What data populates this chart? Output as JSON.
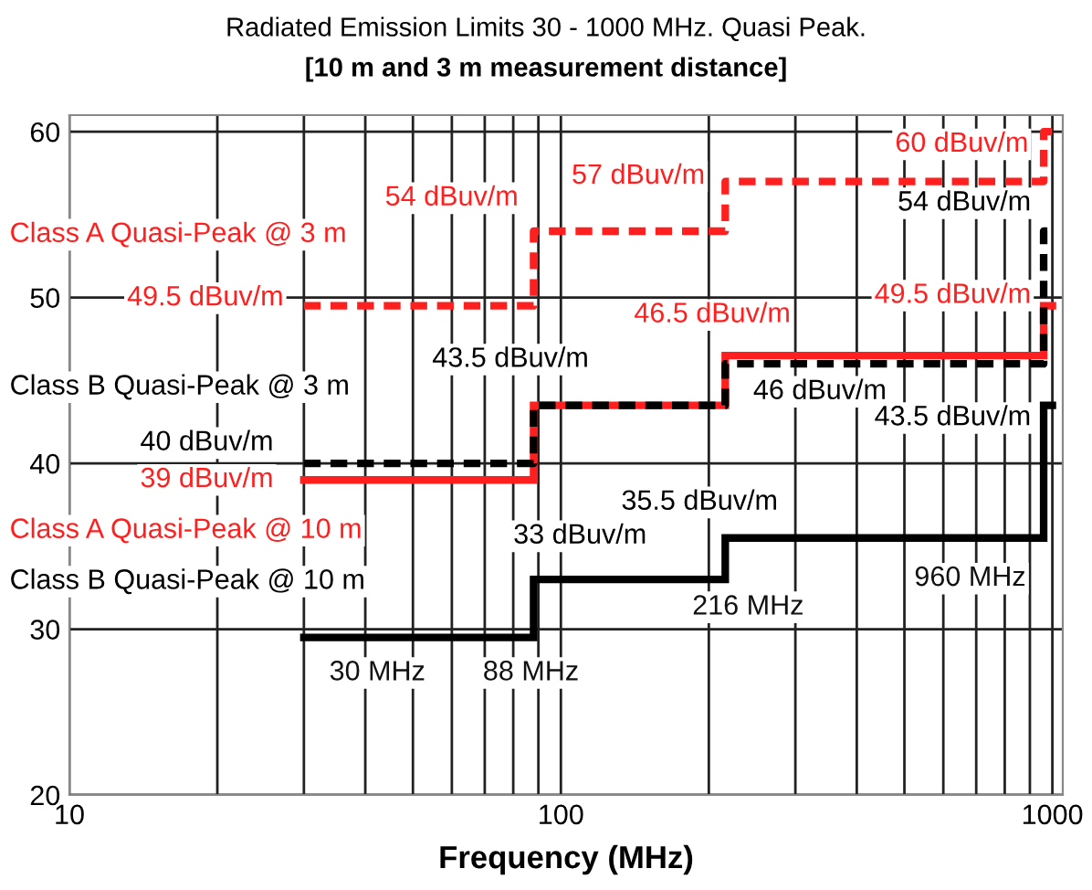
{
  "chart_data": {
    "type": "step",
    "title": "Radiated Emission Limits 30 - 1000 MHz. Quasi Peak.",
    "subtitle": "[10 m and 3 m measurement distance]",
    "xlabel": "Frequency (MHz)",
    "x": [
      30,
      88,
      216,
      960,
      1000
    ],
    "series": [
      {
        "name": "Class A Quasi-Peak @ 3 m",
        "color": "#ff1f1f",
        "line_style": "dashed",
        "values": [
          49.5,
          54,
          57,
          60,
          60
        ],
        "value_labels": [
          "49.5 dBuv/m",
          "54 dBuv/m",
          "57 dBuv/m",
          "60 dBuv/m",
          null
        ]
      },
      {
        "name": "Class B Quasi-Peak @ 3 m",
        "color": "#000000",
        "line_style": "dashed",
        "values": [
          40,
          43.5,
          46,
          54,
          54
        ],
        "value_labels": [
          "40 dBuv/m",
          "43.5 dBuv/m",
          "46 dBuv/m",
          "54 dBuv/m",
          null
        ]
      },
      {
        "name": "Class A Quasi-Peak @ 10 m",
        "color": "#ff1f1f",
        "line_style": "solid",
        "values": [
          39,
          43.5,
          46.5,
          49.5,
          49.5
        ],
        "value_labels": [
          "39 dBuv/m",
          null,
          "46.5 dBuv/m",
          "49.5 dBuv/m",
          null
        ]
      },
      {
        "name": "Class B Quasi-Peak @ 10 m",
        "color": "#000000",
        "line_style": "solid",
        "values": [
          29.5,
          33,
          35.5,
          43.5,
          43.5
        ],
        "value_labels": [
          null,
          "33 dBuv/m",
          "35.5 dBuv/m",
          "43.5 dBuv/m",
          null
        ]
      }
    ],
    "annotations": [
      {
        "text": "30 MHz",
        "x": 30,
        "y": 29.5
      },
      {
        "text": "88 MHz",
        "x": 88,
        "y": 29.5
      },
      {
        "text": "216 MHz",
        "x": 216,
        "y": 33
      },
      {
        "text": "960 MHz",
        "x": 960,
        "y": 35.5
      }
    ],
    "log": "x",
    "xlim": [
      10,
      1050
    ],
    "xticks": [
      10,
      100,
      1000
    ],
    "ylim": [
      20,
      61
    ],
    "yticks": [
      20,
      30,
      40,
      50,
      60
    ],
    "grid": true,
    "legend": false
  }
}
